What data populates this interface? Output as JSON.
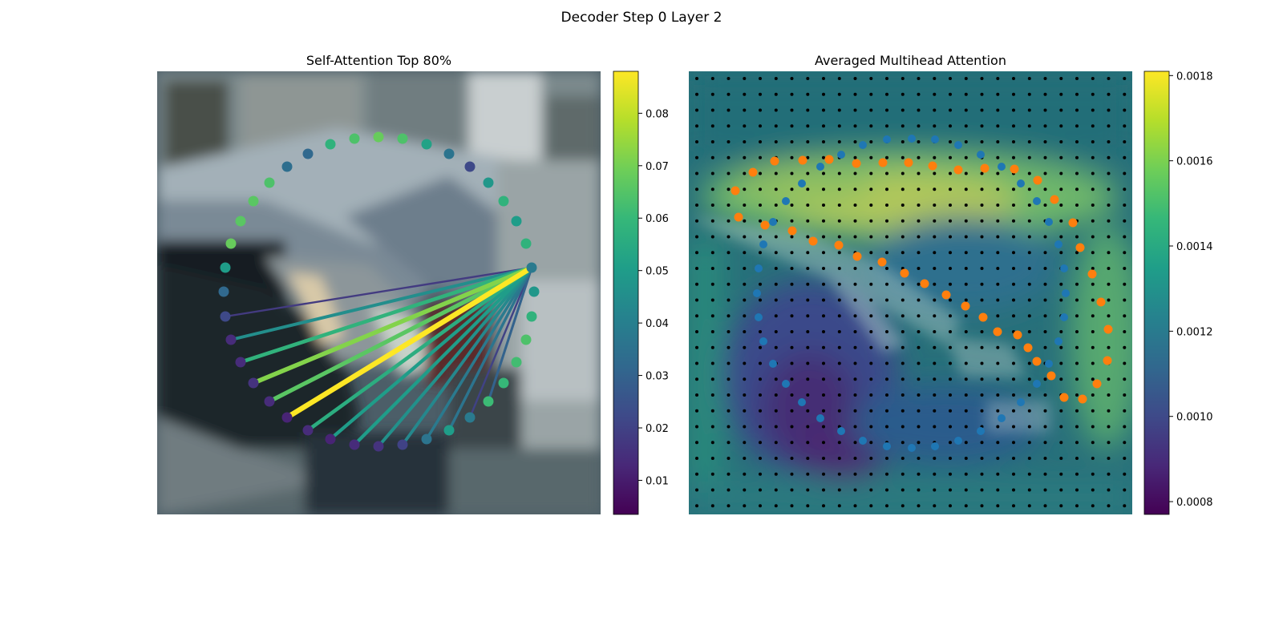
{
  "figure": {
    "title": "Decoder Step 0 Layer 2"
  },
  "colors": {
    "viridis": [
      "#440154",
      "#482878",
      "#3e4a89",
      "#31688e",
      "#26828e",
      "#1f9e89",
      "#35b779",
      "#6ece58",
      "#b5de2b",
      "#fde725"
    ],
    "blue_points": "#1f77b4",
    "orange_points": "#ff7f0e",
    "grid_points": "#000000"
  },
  "chart_data": [
    {
      "type": "scatter",
      "title": "Self-Attention Top 80%",
      "background": "blurred photo of parked cars",
      "colorbar": {
        "min": 0.0035,
        "max": 0.088,
        "ticks": [
          0.01,
          0.02,
          0.03,
          0.04,
          0.05,
          0.06,
          0.07,
          0.08
        ],
        "colormap": "viridis"
      },
      "query_index": 9,
      "points": [
        {
          "x": 472,
          "y": 171,
          "v": 0.068
        },
        {
          "x": 502,
          "y": 173,
          "v": 0.064
        },
        {
          "x": 532,
          "y": 180,
          "v": 0.052
        },
        {
          "x": 560,
          "y": 192,
          "v": 0.036
        },
        {
          "x": 586,
          "y": 208,
          "v": 0.022
        },
        {
          "x": 609,
          "y": 228,
          "v": 0.048
        },
        {
          "x": 628,
          "y": 251,
          "v": 0.058
        },
        {
          "x": 644,
          "y": 276,
          "v": 0.05
        },
        {
          "x": 656,
          "y": 304,
          "v": 0.058
        },
        {
          "x": 663,
          "y": 334,
          "v": 0.038
        },
        {
          "x": 666,
          "y": 364,
          "v": 0.048
        },
        {
          "x": 663,
          "y": 395,
          "v": 0.058
        },
        {
          "x": 656,
          "y": 424,
          "v": 0.064
        },
        {
          "x": 644,
          "y": 452,
          "v": 0.062
        },
        {
          "x": 628,
          "y": 478,
          "v": 0.06
        },
        {
          "x": 609,
          "y": 501,
          "v": 0.061
        },
        {
          "x": 586,
          "y": 521,
          "v": 0.038
        },
        {
          "x": 560,
          "y": 537,
          "v": 0.05
        },
        {
          "x": 532,
          "y": 548,
          "v": 0.036
        },
        {
          "x": 502,
          "y": 555,
          "v": 0.02
        },
        {
          "x": 472,
          "y": 557,
          "v": 0.016
        },
        {
          "x": 442,
          "y": 555,
          "v": 0.014
        },
        {
          "x": 412,
          "y": 548,
          "v": 0.012
        },
        {
          "x": 384,
          "y": 537,
          "v": 0.014
        },
        {
          "x": 358,
          "y": 521,
          "v": 0.012
        },
        {
          "x": 336,
          "y": 501,
          "v": 0.014
        },
        {
          "x": 316,
          "y": 478,
          "v": 0.016
        },
        {
          "x": 300,
          "y": 452,
          "v": 0.014
        },
        {
          "x": 288,
          "y": 424,
          "v": 0.014
        },
        {
          "x": 281,
          "y": 395,
          "v": 0.022
        },
        {
          "x": 279,
          "y": 364,
          "v": 0.032
        },
        {
          "x": 281,
          "y": 334,
          "v": 0.05
        },
        {
          "x": 288,
          "y": 304,
          "v": 0.068
        },
        {
          "x": 300,
          "y": 276,
          "v": 0.066
        },
        {
          "x": 316,
          "y": 251,
          "v": 0.066
        },
        {
          "x": 336,
          "y": 228,
          "v": 0.064
        },
        {
          "x": 358,
          "y": 208,
          "v": 0.034
        },
        {
          "x": 384,
          "y": 192,
          "v": 0.032
        },
        {
          "x": 412,
          "y": 180,
          "v": 0.058
        },
        {
          "x": 442,
          "y": 173,
          "v": 0.064
        }
      ],
      "attention_targets": [
        {
          "i": 24,
          "w": 0.088
        },
        {
          "i": 26,
          "w": 0.072
        },
        {
          "i": 25,
          "w": 0.066
        },
        {
          "i": 27,
          "w": 0.058
        },
        {
          "i": 23,
          "w": 0.056
        },
        {
          "i": 22,
          "w": 0.05
        },
        {
          "i": 21,
          "w": 0.05
        },
        {
          "i": 20,
          "w": 0.046
        },
        {
          "i": 28,
          "w": 0.045
        },
        {
          "i": 19,
          "w": 0.043
        },
        {
          "i": 18,
          "w": 0.038
        },
        {
          "i": 17,
          "w": 0.036
        },
        {
          "i": 29,
          "w": 0.018
        },
        {
          "i": 16,
          "w": 0.02
        },
        {
          "i": 15,
          "w": 0.03
        }
      ]
    },
    {
      "type": "heatmap",
      "title": "Averaged Multihead Attention",
      "background": "blurred photo of parked cars with attention heatmap overlay",
      "colorbar": {
        "min": 0.00077,
        "max": 0.00181,
        "ticks": [
          0.0008,
          0.001,
          0.0012,
          0.0014,
          0.0016,
          0.0018
        ],
        "colormap": "viridis"
      },
      "grid_points": {
        "cols": 28,
        "rows": 28
      },
      "blue_points": [
        [
          1106,
          174
        ],
        [
          1137,
          173
        ],
        [
          1166,
          174
        ],
        [
          1195,
          181
        ],
        [
          1223,
          193
        ],
        [
          1249,
          208
        ],
        [
          1273,
          229
        ],
        [
          1293,
          251
        ],
        [
          1308,
          277
        ],
        [
          1320,
          305
        ],
        [
          1327,
          335
        ],
        [
          1329,
          366
        ],
        [
          1327,
          396
        ],
        [
          1320,
          426
        ],
        [
          1308,
          454
        ],
        [
          1293,
          479
        ],
        [
          1273,
          502
        ],
        [
          1249,
          522
        ],
        [
          1223,
          538
        ],
        [
          1195,
          550
        ],
        [
          1166,
          557
        ],
        [
          1137,
          559
        ],
        [
          1106,
          557
        ],
        [
          1076,
          550
        ],
        [
          1049,
          538
        ],
        [
          1023,
          522
        ],
        [
          1000,
          502
        ],
        [
          980,
          479
        ],
        [
          964,
          454
        ],
        [
          952,
          426
        ],
        [
          946,
          396
        ],
        [
          944,
          366
        ],
        [
          946,
          335
        ],
        [
          952,
          305
        ],
        [
          964,
          277
        ],
        [
          980,
          251
        ],
        [
          1000,
          229
        ],
        [
          1023,
          208
        ],
        [
          1049,
          193
        ],
        [
          1076,
          181
        ]
      ],
      "orange_points": [
        [
          917,
          238
        ],
        [
          939,
          215
        ],
        [
          966,
          201
        ],
        [
          1001,
          200
        ],
        [
          1034,
          199
        ],
        [
          1068,
          204
        ],
        [
          1101,
          203
        ],
        [
          1133,
          203
        ],
        [
          1163,
          207
        ],
        [
          1195,
          212
        ],
        [
          1228,
          210
        ],
        [
          1265,
          211
        ],
        [
          1294,
          225
        ],
        [
          1315,
          249
        ],
        [
          1338,
          278
        ],
        [
          1347,
          309
        ],
        [
          1362,
          342
        ],
        [
          1373,
          377
        ],
        [
          1382,
          411
        ],
        [
          1381,
          450
        ],
        [
          1368,
          479
        ],
        [
          1350,
          498
        ],
        [
          1327,
          496
        ],
        [
          1311,
          469
        ],
        [
          1293,
          451
        ],
        [
          1282,
          434
        ],
        [
          1269,
          418
        ],
        [
          1244,
          414
        ],
        [
          1226,
          396
        ],
        [
          1204,
          382
        ],
        [
          1180,
          368
        ],
        [
          1153,
          354
        ],
        [
          1128,
          341
        ],
        [
          1100,
          327
        ],
        [
          1069,
          320
        ],
        [
          1046,
          306
        ],
        [
          1014,
          301
        ],
        [
          988,
          288
        ],
        [
          954,
          281
        ],
        [
          921,
          271
        ]
      ]
    }
  ]
}
